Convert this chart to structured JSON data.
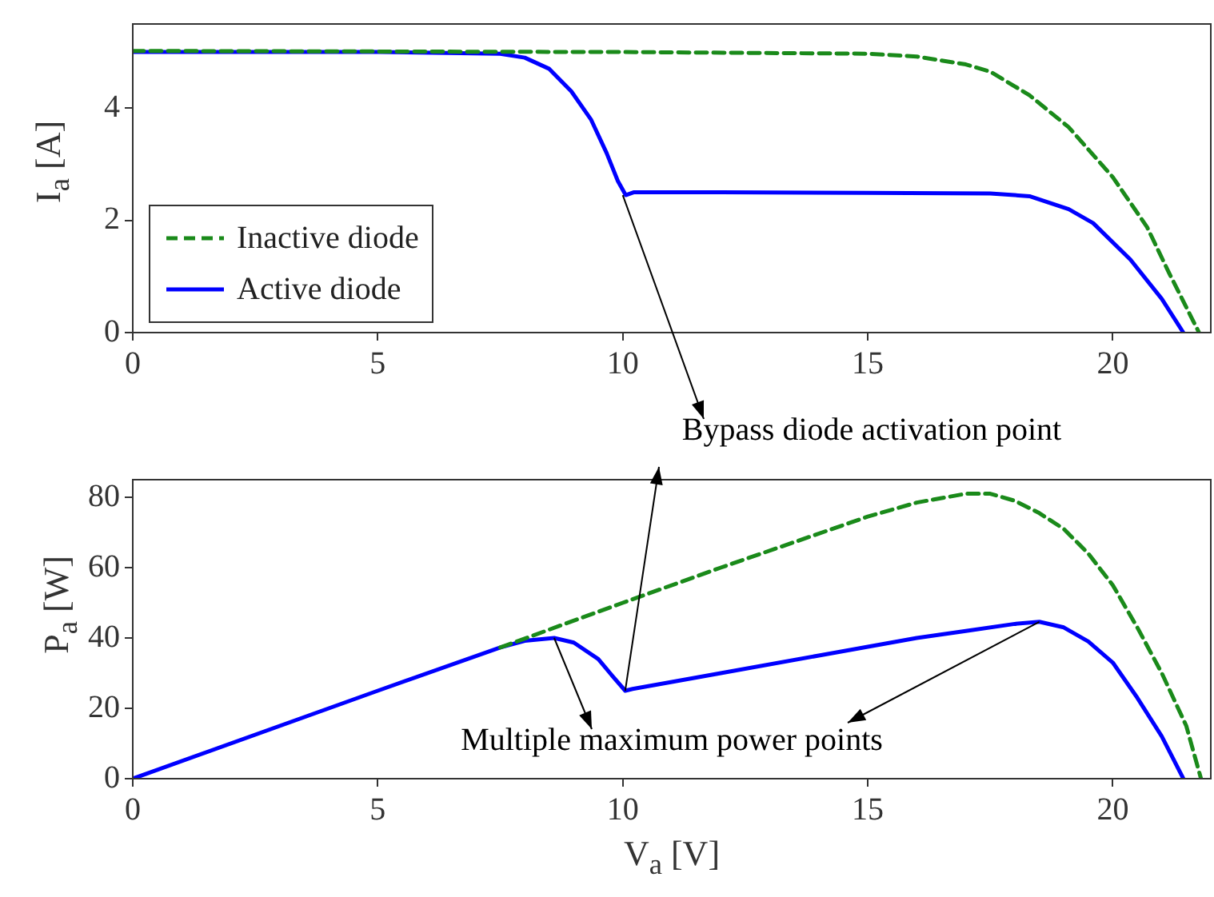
{
  "chart_data": [
    {
      "type": "line",
      "ylabel": "I$_{a}$ [A]",
      "xlim": [
        0,
        22
      ],
      "xticks": [
        0,
        5,
        10,
        15,
        20
      ],
      "ylim": [
        0,
        5.5
      ],
      "yticks": [
        0,
        2,
        4
      ],
      "grid": false,
      "legend": "bottom left",
      "marker": "none",
      "annotations": [
        {
          "text": "Bypass diode activation point",
          "x": 10,
          "y": 2.45
        }
      ],
      "series": [
        {
          "name": "Inactive diode",
          "color": "#1a8a1a",
          "line_style": "dashed",
          "x": [
            0,
            5,
            10,
            15,
            16,
            17,
            17.5,
            18.3,
            19.1,
            20,
            20.7,
            21.15,
            21.76
          ],
          "values": [
            5.02,
            5.01,
            5.0,
            4.97,
            4.92,
            4.78,
            4.65,
            4.23,
            3.66,
            2.77,
            1.88,
            1.06,
            0
          ]
        },
        {
          "name": "Active diode",
          "color": "#0000ff",
          "line_style": "solid",
          "x": [
            0,
            5,
            7.5,
            8,
            8.5,
            8.95,
            9.35,
            9.67,
            9.9,
            10.06,
            10.22,
            12,
            15,
            17.5,
            18.3,
            19.1,
            19.6,
            20.36,
            21,
            21.44
          ],
          "values": [
            5.0,
            5.0,
            4.97,
            4.9,
            4.7,
            4.3,
            3.8,
            3.2,
            2.7,
            2.45,
            2.5,
            2.5,
            2.49,
            2.48,
            2.43,
            2.2,
            1.95,
            1.3,
            0.6,
            0
          ]
        }
      ]
    },
    {
      "type": "line",
      "xlabel": "V$_{a}$ [V]",
      "ylabel": "P$_{a}$ [W]",
      "xlim": [
        0,
        22
      ],
      "xticks": [
        0,
        5,
        10,
        15,
        20
      ],
      "ylim": [
        0,
        85
      ],
      "yticks": [
        0,
        20,
        40,
        60,
        80
      ],
      "grid": false,
      "marker": "none",
      "annotations": [
        {
          "text": "Multiple maximum power points",
          "x": 8.6,
          "y": 40
        }
      ],
      "series": [
        {
          "color": "#1a8a1a",
          "line_style": "dashed",
          "x": [
            7.5,
            10,
            12,
            15,
            16,
            17,
            17.5,
            18,
            18.5,
            19,
            19.5,
            20,
            20.5,
            21,
            21.5,
            21.8
          ],
          "values": [
            37.3,
            50,
            60,
            74.5,
            78.5,
            81,
            81,
            79,
            75.5,
            71,
            64,
            55,
            43,
            30,
            15,
            0
          ]
        },
        {
          "color": "#0000ff",
          "line_style": "solid",
          "x": [
            0,
            5,
            7.5,
            8,
            8.6,
            9,
            9.5,
            9.8,
            10.05,
            10.2,
            11,
            12,
            14,
            16,
            17,
            18,
            18.5,
            19,
            19.5,
            20,
            20.5,
            21,
            21.44
          ],
          "values": [
            0,
            25,
            37.3,
            39.2,
            40,
            38.7,
            34,
            29,
            25,
            25.5,
            27.5,
            30,
            35,
            40,
            42,
            44,
            44.6,
            43,
            39,
            33,
            23,
            12,
            0
          ]
        }
      ]
    }
  ]
}
